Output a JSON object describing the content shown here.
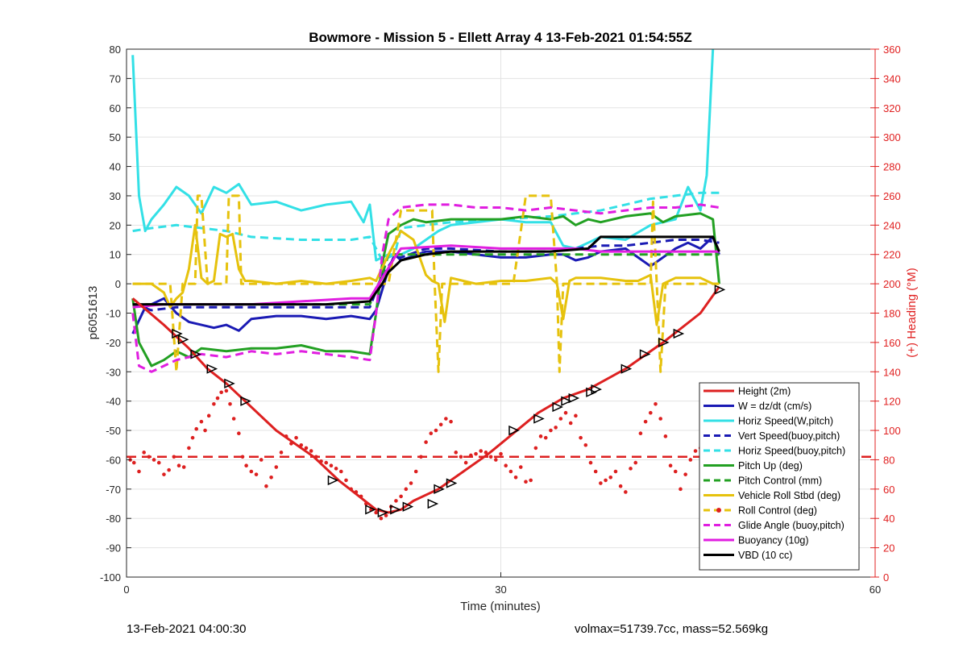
{
  "chart_data": {
    "type": "line",
    "title": "Bowmore - Mission 5 - Ellett Array 4 13-Feb-2021 01:54:55Z",
    "xlabel": "Time (minutes)",
    "ylabel": "p6051613",
    "y2label": "(+) Heading (°M)",
    "xlim": [
      0,
      60
    ],
    "ylim": [
      -100,
      80
    ],
    "y2lim": [
      0,
      360
    ],
    "xticks": [
      "0",
      "30",
      "60"
    ],
    "yticks": [
      "80",
      "70",
      "60",
      "50",
      "40",
      "30",
      "20",
      "10",
      "0",
      "-10",
      "-20",
      "-30",
      "-40",
      "-50",
      "-60",
      "-70",
      "-80",
      "-90",
      "-100"
    ],
    "y2ticks": [
      "360",
      "340",
      "320",
      "300",
      "280",
      "260",
      "240",
      "220",
      "200",
      "180",
      "160",
      "140",
      "120",
      "100",
      "80",
      "60",
      "40",
      "20",
      "0"
    ],
    "grid": true,
    "legend_position": "bottom-right",
    "legend": [
      {
        "label": "Height (2m)",
        "color": "#dd2020",
        "style": "solid"
      },
      {
        "label": "W = dz/dt (cm/s)",
        "color": "#1a1ab4",
        "style": "solid"
      },
      {
        "label": "Horiz Speed(W,pitch)",
        "color": "#33e0e6",
        "style": "solid"
      },
      {
        "label": "Vert Speed(buoy,pitch)",
        "color": "#1a1ab4",
        "style": "dashed"
      },
      {
        "label": "Horiz Speed(buoy,pitch)",
        "color": "#33e0e6",
        "style": "dashed"
      },
      {
        "label": "Pitch Up (deg)",
        "color": "#22a022",
        "style": "solid"
      },
      {
        "label": "Pitch Control (mm)",
        "color": "#22a022",
        "style": "dashed"
      },
      {
        "label": "Vehicle Roll Stbd (deg)",
        "color": "#e6c20d",
        "style": "solid"
      },
      {
        "label": "Roll Control (deg)",
        "color": "#e6c20d",
        "style": "dashed"
      },
      {
        "label": "Glide Angle (buoy,pitch)",
        "color": "#e01ee0",
        "style": "dashed"
      },
      {
        "label": "Buoyancy (10g)",
        "color": "#e01ee0",
        "style": "solid"
      },
      {
        "label": "VBD (10 cc)",
        "color": "#000000",
        "style": "solid"
      }
    ],
    "series": [
      {
        "name": "Height (2m)",
        "axis": "left",
        "color": "#dd2020",
        "style": "solid",
        "x": [
          0.5,
          3,
          5,
          6.5,
          8,
          9.5,
          12,
          15,
          17,
          20,
          21,
          22,
          23,
          25,
          26,
          29,
          31,
          33,
          35,
          37,
          40,
          43,
          46,
          47.5
        ],
        "y": [
          -5,
          -14,
          -22,
          -29,
          -34,
          -40,
          -50,
          -59,
          -67,
          -77,
          -78,
          -77,
          -74,
          -70,
          -67,
          -58,
          -51,
          -44,
          -39,
          -36,
          -29,
          -20,
          -10,
          -1
        ]
      },
      {
        "name": "W = dz/dt (cm/s)",
        "axis": "left",
        "color": "#1a1ab4",
        "style": "solid",
        "x": [
          0.5,
          1.5,
          3,
          4,
          5,
          7,
          8,
          9,
          10,
          12,
          14,
          16,
          18,
          19.5,
          20,
          21,
          21.5,
          22,
          24,
          26,
          28,
          30,
          32,
          34,
          35,
          36,
          37,
          38,
          40,
          41,
          42,
          44,
          45,
          46,
          47,
          47.5
        ],
        "y": [
          -17,
          -8,
          -5,
          -10,
          -13,
          -15,
          -14,
          -16,
          -12,
          -11,
          -11,
          -12,
          -11,
          -12,
          -9,
          5,
          10,
          8,
          11,
          11,
          10,
          9,
          9,
          10,
          10,
          8,
          9,
          11,
          12,
          9,
          6,
          12,
          14,
          12,
          16,
          10
        ]
      },
      {
        "name": "Horiz Speed(W,pitch)",
        "axis": "left",
        "color": "#33e0e6",
        "style": "solid",
        "x": [
          0.5,
          1,
          1.5,
          2,
          3,
          4,
          5,
          6,
          7,
          8,
          9,
          10,
          12,
          14,
          16,
          18,
          19,
          19.5,
          20,
          21,
          22,
          23,
          24,
          25,
          26,
          28,
          30,
          32,
          34,
          35,
          36,
          37,
          38,
          40,
          42,
          44,
          45,
          46,
          46.5,
          47
        ],
        "y": [
          78,
          30,
          18,
          22,
          27,
          33,
          30,
          24,
          33,
          31,
          34,
          27,
          28,
          25,
          27,
          28,
          21,
          27,
          8,
          10,
          10,
          12,
          15,
          18,
          20,
          21,
          22,
          21,
          21,
          13,
          12,
          14,
          16,
          15,
          20,
          22,
          33,
          25,
          37,
          80
        ]
      },
      {
        "name": "Vert Speed(buoy,pitch)",
        "axis": "left",
        "color": "#1a1ab4",
        "style": "dashed",
        "x": [
          0.5,
          2,
          4,
          6,
          10,
          14,
          18,
          19.5,
          20.5,
          21.5,
          22,
          24,
          26,
          30,
          34,
          36,
          38,
          40,
          42,
          44,
          46,
          47.5
        ],
        "y": [
          -7,
          -9,
          -8,
          -8,
          -8,
          -8,
          -8,
          -8,
          3,
          9,
          9,
          12,
          12,
          11,
          11,
          12,
          13,
          13,
          14,
          15,
          15,
          14
        ]
      },
      {
        "name": "Horiz Speed(buoy,pitch)",
        "axis": "left",
        "color": "#33e0e6",
        "style": "dashed",
        "x": [
          0.5,
          2,
          4,
          6,
          8,
          10,
          14,
          18,
          19.5,
          20.5,
          21.5,
          22,
          24,
          26,
          30,
          34,
          36,
          38,
          40,
          42,
          44,
          46,
          47.5
        ],
        "y": [
          18,
          19,
          20,
          19,
          18,
          16,
          15,
          15,
          16,
          8,
          10,
          19,
          20,
          21,
          22,
          23,
          24,
          25,
          27,
          29,
          30,
          31,
          31
        ]
      },
      {
        "name": "Pitch Up (deg)",
        "axis": "left",
        "color": "#22a022",
        "style": "solid",
        "x": [
          0.5,
          1,
          2,
          3,
          4,
          5,
          6,
          8,
          10,
          12,
          14,
          16,
          18,
          19.5,
          20,
          20.5,
          21,
          22,
          23,
          24,
          26,
          28,
          30,
          32,
          34,
          35,
          36,
          37,
          38,
          40,
          42,
          43,
          44,
          46,
          47,
          47.5
        ],
        "y": [
          -5,
          -20,
          -28,
          -26,
          -23,
          -25,
          -22,
          -23,
          -22,
          -22,
          -21,
          -23,
          -23,
          -24,
          -10,
          7,
          17,
          20,
          22,
          21,
          22,
          22,
          22,
          23,
          22,
          23,
          20,
          22,
          21,
          23,
          24,
          21,
          23,
          24,
          22,
          0
        ]
      },
      {
        "name": "Pitch Control (mm)",
        "axis": "left",
        "color": "#22a022",
        "style": "dashed",
        "x": [
          0.5,
          2,
          6,
          10,
          14,
          18,
          19.5,
          20.5,
          21,
          22,
          26,
          30,
          34,
          38,
          42,
          46,
          47.5
        ],
        "y": [
          -7,
          -7,
          -7,
          -7,
          -7,
          -7,
          -7,
          3,
          10,
          10,
          10,
          10,
          10,
          10,
          10,
          10,
          10
        ]
      },
      {
        "name": "Vehicle Roll Stbd (deg)",
        "axis": "left",
        "color": "#e6c20d",
        "style": "solid",
        "x": [
          0.5,
          2,
          3,
          3.5,
          4,
          4.5,
          5,
          5.5,
          6,
          6.5,
          7,
          7.5,
          8,
          8.5,
          9,
          9.5,
          10,
          12,
          14,
          16,
          18,
          19.5,
          20,
          21,
          22,
          23,
          24,
          24.5,
          25,
          25.5,
          26,
          27,
          28,
          30,
          32,
          34,
          34.5,
          35,
          35.5,
          36,
          38,
          40,
          41,
          42,
          42.5,
          43,
          44,
          46,
          47,
          47.5
        ],
        "y": [
          0,
          0,
          -3,
          -8,
          -5,
          -3,
          5,
          20,
          2,
          0,
          1,
          17,
          16,
          17,
          5,
          1,
          1,
          0,
          1,
          0,
          1,
          2,
          1,
          10,
          18,
          15,
          3,
          1,
          0,
          -13,
          2,
          1,
          0,
          1,
          1,
          2,
          0,
          -12,
          1,
          2,
          2,
          1,
          1,
          3,
          -14,
          0,
          2,
          2,
          0,
          0
        ]
      },
      {
        "name": "Roll Control (deg)",
        "axis": "left",
        "color": "#e6c20d",
        "style": "dashed",
        "x": [
          0.5,
          3.5,
          4,
          4.5,
          5.5,
          5.7,
          6,
          6.5,
          8,
          8.2,
          9,
          9.2,
          10,
          18,
          20,
          21,
          22,
          23.5,
          24.5,
          24.7,
          25,
          25.3,
          26,
          26.5,
          31,
          32,
          34,
          34.5,
          34.7,
          35,
          35.3,
          36,
          36.5,
          38,
          40,
          42,
          42.2,
          42.5,
          42.8,
          43.2,
          44,
          46,
          47.5
        ],
        "y": [
          0,
          0,
          -30,
          0,
          0,
          30,
          30,
          0,
          0,
          30,
          30,
          0,
          0,
          0,
          0,
          0,
          25,
          25,
          25,
          0,
          -30,
          0,
          0,
          0,
          0,
          30,
          30,
          0,
          -30,
          0,
          0,
          0,
          0,
          0,
          0,
          0,
          28,
          0,
          -30,
          0,
          0,
          0,
          0
        ]
      },
      {
        "name": "Glide Angle (buoy,pitch)",
        "axis": "left",
        "color": "#e01ee0",
        "style": "dashed",
        "x": [
          0.5,
          1,
          2,
          3,
          4,
          6,
          8,
          10,
          12,
          14,
          16,
          18,
          19.5,
          20,
          20.5,
          21,
          22,
          24,
          26,
          28,
          30,
          32,
          34,
          36,
          38,
          40,
          42,
          44,
          46,
          47.5
        ],
        "y": [
          -10,
          -28,
          -30,
          -28,
          -26,
          -24,
          -25,
          -23,
          -24,
          -23,
          -24,
          -25,
          -26,
          -10,
          10,
          22,
          26,
          27,
          27,
          26,
          26,
          25,
          26,
          25,
          24,
          25,
          26,
          26,
          27,
          26
        ]
      },
      {
        "name": "Buoyancy (10g)",
        "axis": "left",
        "color": "#e01ee0",
        "style": "solid",
        "x": [
          0.5,
          3,
          6,
          10,
          14,
          18,
          19.5,
          21.5,
          22,
          26,
          30,
          34,
          36,
          38,
          42,
          46,
          47.5
        ],
        "y": [
          -8,
          -7,
          -7,
          -7,
          -6,
          -5,
          -5,
          9,
          12,
          13,
          12,
          12,
          12,
          11,
          11,
          11,
          11
        ]
      },
      {
        "name": "VBD (10 cc)",
        "axis": "left",
        "color": "#000000",
        "style": "solid",
        "x": [
          0.5,
          4,
          8,
          12,
          16,
          19.5,
          20.5,
          21,
          21.5,
          22,
          23,
          24,
          26,
          30,
          34,
          37,
          38,
          40,
          44,
          47,
          47.5
        ],
        "y": [
          -7,
          -7,
          -7,
          -7,
          -7,
          -6,
          0,
          4,
          6,
          8,
          9,
          10,
          11,
          11,
          11,
          12,
          16,
          16,
          16,
          16,
          11
        ]
      },
      {
        "name": "Heading",
        "axis": "right",
        "color": "#dd2020",
        "style": "dots",
        "x": [
          0.3,
          0.6,
          1,
          1.4,
          1.8,
          2.2,
          2.6,
          3,
          3.4,
          3.8,
          4.2,
          4.6,
          5,
          5.3,
          5.6,
          6,
          6.3,
          6.6,
          7,
          7.3,
          7.6,
          8,
          8.3,
          8.6,
          9,
          9.3,
          9.6,
          10,
          10.4,
          10.8,
          11.2,
          11.6,
          12,
          12.4,
          12.8,
          13.2,
          13.6,
          14,
          14.4,
          14.8,
          15.2,
          15.6,
          16,
          16.4,
          16.8,
          17.2,
          17.6,
          18,
          18.4,
          18.8,
          19.2,
          19.6,
          20,
          20.4,
          20.8,
          21.2,
          21.6,
          22,
          22.4,
          22.8,
          23.2,
          23.6,
          24,
          24.4,
          24.8,
          25.2,
          25.6,
          26,
          26.4,
          26.8,
          27.2,
          27.6,
          28,
          28.4,
          28.8,
          29.2,
          29.6,
          30,
          30.4,
          30.8,
          31.2,
          31.6,
          32,
          32.4,
          32.8,
          33.2,
          33.6,
          34,
          34.4,
          34.8,
          35.2,
          35.6,
          36,
          36.4,
          36.8,
          37.2,
          37.6,
          38,
          38.4,
          38.8,
          39.2,
          39.6,
          40,
          40.4,
          40.8,
          41.2,
          41.6,
          42,
          42.4,
          42.8,
          43.2,
          43.6,
          44,
          44.4,
          44.8,
          45.2,
          45.6,
          46,
          46.4,
          46.8,
          47.2
        ],
        "y": [
          80,
          78,
          72,
          85,
          82,
          80,
          78,
          70,
          73,
          82,
          76,
          75,
          88,
          95,
          101,
          106,
          100,
          110,
          118,
          122,
          126,
          127,
          118,
          108,
          98,
          82,
          76,
          72,
          70,
          80,
          62,
          68,
          75,
          85,
          96,
          91,
          95,
          90,
          88,
          86,
          82,
          79,
          78,
          76,
          74,
          72,
          66,
          60,
          58,
          55,
          50,
          46,
          44,
          40,
          42,
          48,
          52,
          55,
          60,
          64,
          72,
          82,
          92,
          98,
          100,
          104,
          108,
          106,
          85,
          82,
          78,
          83,
          84,
          86,
          85,
          82,
          80,
          84,
          76,
          72,
          68,
          75,
          65,
          66,
          88,
          96,
          95,
          100,
          102,
          108,
          112,
          105,
          110,
          95,
          90,
          78,
          72,
          64,
          66,
          68,
          72,
          62,
          58,
          74,
          78,
          98,
          106,
          112,
          118,
          108,
          96,
          76,
          72,
          60,
          70,
          80,
          86,
          88,
          86,
          82,
          80
        ]
      }
    ],
    "triangles": {
      "x": [
        4,
        4.5,
        5.5,
        6.8,
        8.2,
        9.5,
        16.5,
        19.5,
        20.5,
        21.5,
        22.5,
        24.5,
        25,
        26,
        31,
        33,
        34.5,
        35.2,
        35.8,
        37.2,
        37.6,
        40,
        41.5,
        43,
        44.2,
        47.5
      ],
      "y": [
        -17,
        -19,
        -24,
        -29,
        -34,
        -40,
        -67,
        -77,
        -78,
        -77,
        -76,
        -75,
        -70,
        -68,
        -50,
        -46,
        -42,
        -40,
        -39,
        -37,
        -36,
        -29,
        -24,
        -20,
        -17,
        -2
      ]
    },
    "hline": {
      "y": -59,
      "color": "#dd2020",
      "style": "dashed"
    }
  },
  "footer": {
    "left": "13-Feb-2021 04:00:30",
    "right": "volmax=51739.7cc, mass=52.569kg"
  }
}
